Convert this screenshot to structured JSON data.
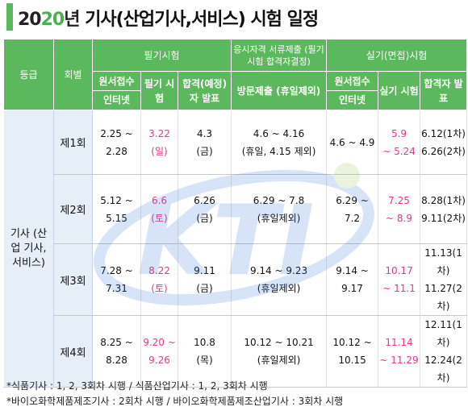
{
  "title": {
    "year_a": "20",
    "year_b": "20",
    "year_c": "년",
    "rest": " 기사(산업기사,서비스) 시험 일정"
  },
  "headers": {
    "grade": "등급",
    "round": "회별",
    "written": "필기시험",
    "doc_submit": "응시자격 서류제출 (필기시험 합격자결정)",
    "practical": "실기(면접)시험",
    "apply_line1": "원서접수",
    "apply_line2": "인터넷",
    "written_exam": "필기 시험",
    "written_pass": "합격(예정)자 발표",
    "visit_submit": "방문제출 (휴일제외)",
    "prac_apply_line1": "원서접수",
    "prac_apply_line2": "인터넷",
    "prac_exam": "실기 시험",
    "prac_pass": "합격자 발표"
  },
  "grade_label": "기사 (산업 기사, 서비스)",
  "rows": [
    {
      "round": "제1회",
      "apply": "2.25 ~ 2.28",
      "exam_a": "3.22",
      "exam_b": "(일)",
      "pass_a": "4.3",
      "pass_b": "(금)",
      "submit_a": "4.6 ~ 4.16",
      "submit_b": "(휴일, 4.15 제외)",
      "papply": "4.6 ~ 4.9",
      "pexam_a": "5.9",
      "pexam_b": "~ 5.24",
      "ppass_a": "6.12(1차)",
      "ppass_b": "6.26(2차)"
    },
    {
      "round": "제2회",
      "apply": "5.12 ~ 5.15",
      "exam_a": "6.6",
      "exam_b": "(토)",
      "pass_a": "6.26",
      "pass_b": "(금)",
      "submit_a": "6.29 ~ 7.8",
      "submit_b": "(휴일제외)",
      "papply": "6.29 ~ 7.2",
      "pexam_a": "7.25",
      "pexam_b": "~ 8.9",
      "ppass_a": "8.28(1차)",
      "ppass_b": "9.11(2차)"
    },
    {
      "round": "제3회",
      "apply": "7.28 ~ 7.31",
      "exam_a": "8.22",
      "exam_b": "(토)",
      "pass_a": "9.11",
      "pass_b": "(금)",
      "submit_a": "9.14 ~ 9.23",
      "submit_b": "(휴일제외)",
      "papply": "9.14 ~ 9.17",
      "pexam_a": "10.17",
      "pexam_b": "~ 11.1",
      "ppass_a": "11.13(1차)",
      "ppass_b": "11.27(2차)"
    },
    {
      "round": "제4회",
      "apply": "8.25 ~ 8.28",
      "exam_a": "9.20 ~",
      "exam_b": "9.26",
      "pass_a": "10.8",
      "pass_b": "(목)",
      "submit_a": "10.12 ~ 10.21",
      "submit_b": "(휴일제외)",
      "papply": "10.12 ~ 10.15",
      "pexam_a": "11.14",
      "pexam_b": "~ 11.29",
      "ppass_a": "12.11(1차)",
      "ppass_b": "12.24(2차)"
    }
  ],
  "notes": [
    "*식품기사 : 1, 2, 3회차 시행 / 식품산업기사 : 1, 2, 3회차 시행",
    "*바이오화학제품제조기사 : 2회차 시행 / 바이오화학제품제조산업기사 : 3회차 시행"
  ],
  "watermark": {
    "text": "KTI"
  },
  "colors": {
    "header_green": "#5cb85c",
    "side_blue": "#e6eef8",
    "highlight_pink": "#e8358b"
  }
}
